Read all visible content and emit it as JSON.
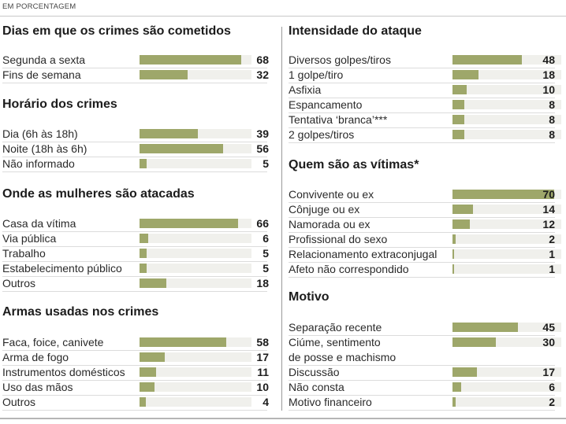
{
  "header": "EM PORCENTAGEM",
  "colors": {
    "bar": "#9ea76a",
    "track": "#f0f0ec"
  },
  "chart_data": [
    {
      "type": "bar",
      "title": "Dias em que os crimes são cometidos",
      "unit": "%",
      "categories": [
        "Segunda a sexta",
        "Fins de semana"
      ],
      "values": [
        68,
        32
      ]
    },
    {
      "type": "bar",
      "title": "Horário dos crimes",
      "unit": "%",
      "categories": [
        "Dia (6h às 18h)",
        "Noite (18h às 6h)",
        "Não informado"
      ],
      "values": [
        39,
        56,
        5
      ]
    },
    {
      "type": "bar",
      "title": "Onde as mulheres são atacadas",
      "unit": "%",
      "categories": [
        "Casa da vítima",
        "Via pública",
        "Trabalho",
        "Estabelecimento público",
        "Outros"
      ],
      "values": [
        66,
        6,
        5,
        5,
        18
      ]
    },
    {
      "type": "bar",
      "title": "Armas usadas nos crimes",
      "unit": "%",
      "categories": [
        "Faca, foice, canivete",
        "Arma de fogo",
        "Instrumentos domésticos",
        "Uso das mãos",
        "Outros"
      ],
      "values": [
        58,
        17,
        11,
        10,
        4
      ]
    },
    {
      "type": "bar",
      "title": "Intensidade do ataque",
      "unit": "%",
      "categories": [
        "Diversos golpes/tiros",
        "1 golpe/tiro",
        "Asfixia",
        "Espancamento",
        "Tentativa ‘branca’***",
        "2 golpes/tiros"
      ],
      "values": [
        48,
        18,
        10,
        8,
        8,
        8
      ]
    },
    {
      "type": "bar",
      "title": "Quem são as vítimas*",
      "unit": "%",
      "categories": [
        "Convivente ou ex",
        "Cônjuge ou ex",
        "Namorada ou ex",
        "Profissional do sexo",
        "Relacionamento extraconjugal",
        "Afeto não correspondido"
      ],
      "values": [
        70,
        14,
        12,
        2,
        1,
        1
      ]
    },
    {
      "type": "bar",
      "title": "Motivo",
      "unit": "%",
      "categories": [
        "Separação recente",
        "Ciúme, sentimento|de posse e machismo",
        "Discussão",
        "Não consta",
        "Motivo financeiro"
      ],
      "values": [
        45,
        30,
        17,
        6,
        2
      ]
    }
  ]
}
